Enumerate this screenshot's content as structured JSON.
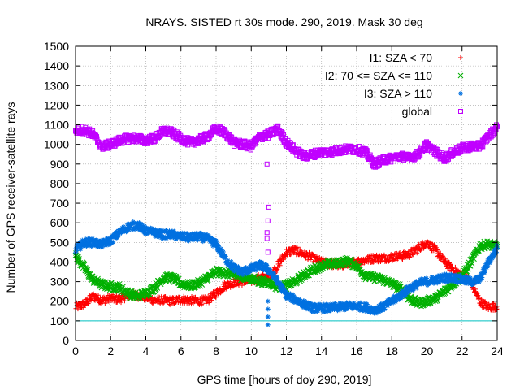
{
  "chart_data": {
    "type": "scatter",
    "title": "NRAYS. SISTED rt 30s mode. 290, 2019. Mask 30 deg",
    "xlabel": "GPS time [hours of doy 290, 2019]",
    "ylabel": "Number of GPS receiver-satellite rays",
    "xlim": [
      0,
      24
    ],
    "ylim": [
      0,
      1500
    ],
    "x_ticks": [
      "0",
      "2",
      "4",
      "6",
      "8",
      "10",
      "12",
      "14",
      "16",
      "18",
      "20",
      "22",
      "24"
    ],
    "y_ticks": [
      "0",
      "100",
      "200",
      "300",
      "400",
      "500",
      "600",
      "700",
      "800",
      "900",
      "1000",
      "1100",
      "1200",
      "1300",
      "1400",
      "1500"
    ],
    "grid": true,
    "legend_position": "top-right",
    "reference_line": {
      "y": 100,
      "color": "#00c0c0"
    },
    "series": [
      {
        "name": "I1: SZA < 70",
        "marker": "+",
        "color": "#ff0000",
        "points": [
          [
            0,
            170
          ],
          [
            0.5,
            185
          ],
          [
            1,
            225
          ],
          [
            1.5,
            205
          ],
          [
            2,
            215
          ],
          [
            2.5,
            210
          ],
          [
            3,
            230
          ],
          [
            3.5,
            230
          ],
          [
            4,
            220
          ],
          [
            4.5,
            205
          ],
          [
            5,
            205
          ],
          [
            5.5,
            200
          ],
          [
            6,
            210
          ],
          [
            6.5,
            205
          ],
          [
            7,
            200
          ],
          [
            7.5,
            205
          ],
          [
            8,
            240
          ],
          [
            8.5,
            280
          ],
          [
            9,
            295
          ],
          [
            9.5,
            300
          ],
          [
            10,
            305
          ],
          [
            10.5,
            320
          ],
          [
            11,
            320
          ],
          [
            11.5,
            380
          ],
          [
            12,
            450
          ],
          [
            12.5,
            460
          ],
          [
            13,
            440
          ],
          [
            13.5,
            420
          ],
          [
            14,
            400
          ],
          [
            14.5,
            390
          ],
          [
            15,
            385
          ],
          [
            15.5,
            390
          ],
          [
            16,
            400
          ],
          [
            16.5,
            410
          ],
          [
            17,
            420
          ],
          [
            17.5,
            420
          ],
          [
            18,
            425
          ],
          [
            18.5,
            430
          ],
          [
            19,
            440
          ],
          [
            19.5,
            470
          ],
          [
            20,
            500
          ],
          [
            20.5,
            460
          ],
          [
            21,
            400
          ],
          [
            21.5,
            360
          ],
          [
            22,
            335
          ],
          [
            22.5,
            300
          ],
          [
            23,
            200
          ],
          [
            23.5,
            170
          ],
          [
            24,
            175
          ]
        ]
      },
      {
        "name": "I2: 70 <= SZA <= 110",
        "marker": "x",
        "color": "#00b000",
        "points": [
          [
            0,
            430
          ],
          [
            0.5,
            370
          ],
          [
            1,
            310
          ],
          [
            1.5,
            285
          ],
          [
            2,
            275
          ],
          [
            2.5,
            270
          ],
          [
            3,
            240
          ],
          [
            3.5,
            225
          ],
          [
            4,
            240
          ],
          [
            4.5,
            270
          ],
          [
            5,
            320
          ],
          [
            5.5,
            320
          ],
          [
            6,
            290
          ],
          [
            6.5,
            280
          ],
          [
            7,
            290
          ],
          [
            7.5,
            320
          ],
          [
            8,
            350
          ],
          [
            8.5,
            345
          ],
          [
            9,
            335
          ],
          [
            9.5,
            325
          ],
          [
            10,
            315
          ],
          [
            10.5,
            300
          ],
          [
            11,
            295
          ],
          [
            11.5,
            275
          ],
          [
            12,
            280
          ],
          [
            12.5,
            300
          ],
          [
            13,
            335
          ],
          [
            13.5,
            360
          ],
          [
            14,
            380
          ],
          [
            14.5,
            390
          ],
          [
            15,
            395
          ],
          [
            15.5,
            405
          ],
          [
            16,
            380
          ],
          [
            16.5,
            330
          ],
          [
            17,
            320
          ],
          [
            17.5,
            310
          ],
          [
            18,
            290
          ],
          [
            18.5,
            265
          ],
          [
            19,
            215
          ],
          [
            19.5,
            190
          ],
          [
            20,
            200
          ],
          [
            20.5,
            215
          ],
          [
            21,
            250
          ],
          [
            21.5,
            290
          ],
          [
            22,
            330
          ],
          [
            22.5,
            400
          ],
          [
            23,
            480
          ],
          [
            23.5,
            490
          ],
          [
            24,
            480
          ]
        ]
      },
      {
        "name": "I3: SZA > 110",
        "marker": "*",
        "color": "#0070e0",
        "points": [
          [
            0,
            465
          ],
          [
            0.5,
            500
          ],
          [
            1,
            500
          ],
          [
            1.5,
            490
          ],
          [
            2,
            510
          ],
          [
            2.5,
            550
          ],
          [
            3,
            580
          ],
          [
            3.5,
            590
          ],
          [
            4,
            560
          ],
          [
            4.5,
            550
          ],
          [
            5,
            540
          ],
          [
            5.5,
            540
          ],
          [
            6,
            530
          ],
          [
            6.5,
            525
          ],
          [
            7,
            530
          ],
          [
            7.5,
            520
          ],
          [
            8,
            490
          ],
          [
            8.5,
            420
          ],
          [
            9,
            370
          ],
          [
            9.5,
            350
          ],
          [
            10,
            365
          ],
          [
            10.5,
            385
          ],
          [
            11,
            360
          ],
          [
            11.5,
            300
          ],
          [
            12,
            230
          ],
          [
            12.5,
            210
          ],
          [
            13,
            185
          ],
          [
            13.5,
            165
          ],
          [
            14,
            165
          ],
          [
            14.5,
            165
          ],
          [
            15,
            170
          ],
          [
            15.5,
            175
          ],
          [
            16,
            175
          ],
          [
            16.5,
            170
          ],
          [
            17,
            155
          ],
          [
            17.5,
            170
          ],
          [
            18,
            200
          ],
          [
            18.5,
            230
          ],
          [
            19,
            265
          ],
          [
            19.5,
            290
          ],
          [
            20,
            300
          ],
          [
            20.5,
            310
          ],
          [
            21,
            320
          ],
          [
            21.5,
            320
          ],
          [
            22,
            310
          ],
          [
            22.5,
            300
          ],
          [
            23,
            310
          ],
          [
            23.5,
            400
          ],
          [
            24,
            470
          ]
        ]
      },
      {
        "name": "global",
        "marker": "square",
        "color": "#c000ff",
        "points": [
          [
            0,
            1070
          ],
          [
            0.5,
            1075
          ],
          [
            1,
            1050
          ],
          [
            1.5,
            990
          ],
          [
            2,
            1000
          ],
          [
            2.5,
            1020
          ],
          [
            3,
            1030
          ],
          [
            3.5,
            1030
          ],
          [
            4,
            1020
          ],
          [
            4.5,
            1030
          ],
          [
            5,
            1070
          ],
          [
            5.5,
            1060
          ],
          [
            6,
            1030
          ],
          [
            6.5,
            1010
          ],
          [
            7,
            1020
          ],
          [
            7.5,
            1040
          ],
          [
            8,
            1080
          ],
          [
            8.5,
            1060
          ],
          [
            9,
            1010
          ],
          [
            9.5,
            1000
          ],
          [
            10,
            990
          ],
          [
            10.5,
            1040
          ],
          [
            11,
            1050
          ],
          [
            11.5,
            1080
          ],
          [
            12,
            1010
          ],
          [
            12.5,
            970
          ],
          [
            13,
            940
          ],
          [
            13.5,
            950
          ],
          [
            14,
            960
          ],
          [
            14.5,
            960
          ],
          [
            15,
            970
          ],
          [
            15.5,
            975
          ],
          [
            16,
            975
          ],
          [
            16.5,
            960
          ],
          [
            17,
            900
          ],
          [
            17.5,
            920
          ],
          [
            18,
            930
          ],
          [
            18.5,
            940
          ],
          [
            19,
            930
          ],
          [
            19.5,
            950
          ],
          [
            20,
            1000
          ],
          [
            20.5,
            960
          ],
          [
            21,
            930
          ],
          [
            21.5,
            960
          ],
          [
            22,
            980
          ],
          [
            22.5,
            990
          ],
          [
            23,
            990
          ],
          [
            23.5,
            1040
          ],
          [
            24,
            1090
          ]
        ]
      }
    ],
    "transient_points": [
      {
        "series": "global",
        "points": [
          [
            10.9,
            550
          ],
          [
            10.95,
            610
          ],
          [
            11.0,
            680
          ],
          [
            10.9,
            520
          ],
          [
            10.95,
            450
          ],
          [
            10.9,
            900
          ]
        ]
      },
      {
        "series": "I3: SZA > 110",
        "points": [
          [
            10.95,
            80
          ],
          [
            10.95,
            120
          ],
          [
            10.95,
            160
          ],
          [
            10.95,
            200
          ]
        ]
      }
    ]
  }
}
